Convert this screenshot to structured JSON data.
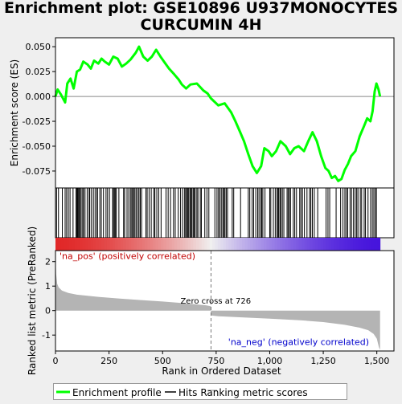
{
  "figure": {
    "title_line1": "Enrichment plot: GSE10896 U937MONOCYTES",
    "title_line2": "CURCUMIN 4H"
  },
  "chart_data": {
    "type": "line",
    "title": "Enrichment plot: GSE10896 U937MONOCYTES CURCUMIN 4H",
    "xlabel": "Rank in Ordered Dataset",
    "xlim": [
      0,
      1580
    ],
    "xticks": [
      0,
      250,
      500,
      750,
      1000,
      1250,
      1500
    ],
    "xtick_labels": [
      "0",
      "250",
      "500",
      "750",
      "1,000",
      "1,250",
      "1,500"
    ],
    "es_panel": {
      "ylabel": "Enrichment score (ES)",
      "ylim": [
        -0.092,
        0.059
      ],
      "yticks": [
        0.05,
        0.025,
        0.0,
        -0.025,
        -0.05,
        -0.075
      ],
      "ytick_labels": [
        "0.050",
        "0.025",
        "0.000",
        "-0.025",
        "-0.050",
        "-0.075"
      ],
      "series_name": "Enrichment profile",
      "color": "#00ff00",
      "points": [
        [
          0,
          0.0
        ],
        [
          10,
          0.007
        ],
        [
          25,
          0.002
        ],
        [
          45,
          -0.006
        ],
        [
          55,
          0.013
        ],
        [
          70,
          0.018
        ],
        [
          85,
          0.008
        ],
        [
          100,
          0.025
        ],
        [
          115,
          0.027
        ],
        [
          130,
          0.035
        ],
        [
          150,
          0.032
        ],
        [
          165,
          0.028
        ],
        [
          180,
          0.036
        ],
        [
          200,
          0.033
        ],
        [
          215,
          0.038
        ],
        [
          230,
          0.035
        ],
        [
          250,
          0.032
        ],
        [
          270,
          0.04
        ],
        [
          290,
          0.038
        ],
        [
          310,
          0.03
        ],
        [
          330,
          0.033
        ],
        [
          350,
          0.037
        ],
        [
          375,
          0.044
        ],
        [
          390,
          0.05
        ],
        [
          410,
          0.04
        ],
        [
          430,
          0.036
        ],
        [
          450,
          0.04
        ],
        [
          470,
          0.047
        ],
        [
          490,
          0.04
        ],
        [
          510,
          0.034
        ],
        [
          530,
          0.028
        ],
        [
          555,
          0.022
        ],
        [
          575,
          0.017
        ],
        [
          590,
          0.012
        ],
        [
          610,
          0.008
        ],
        [
          630,
          0.012
        ],
        [
          660,
          0.013
        ],
        [
          690,
          0.006
        ],
        [
          710,
          0.003
        ],
        [
          726,
          -0.002
        ],
        [
          760,
          -0.009
        ],
        [
          790,
          -0.007
        ],
        [
          820,
          -0.016
        ],
        [
          840,
          -0.025
        ],
        [
          860,
          -0.035
        ],
        [
          880,
          -0.045
        ],
        [
          900,
          -0.058
        ],
        [
          920,
          -0.07
        ],
        [
          940,
          -0.077
        ],
        [
          960,
          -0.07
        ],
        [
          975,
          -0.052
        ],
        [
          995,
          -0.055
        ],
        [
          1010,
          -0.06
        ],
        [
          1030,
          -0.055
        ],
        [
          1050,
          -0.045
        ],
        [
          1075,
          -0.05
        ],
        [
          1095,
          -0.058
        ],
        [
          1115,
          -0.052
        ],
        [
          1135,
          -0.05
        ],
        [
          1160,
          -0.055
        ],
        [
          1180,
          -0.045
        ],
        [
          1200,
          -0.036
        ],
        [
          1220,
          -0.045
        ],
        [
          1240,
          -0.06
        ],
        [
          1260,
          -0.072
        ],
        [
          1275,
          -0.075
        ],
        [
          1290,
          -0.082
        ],
        [
          1305,
          -0.08
        ],
        [
          1320,
          -0.085
        ],
        [
          1335,
          -0.083
        ],
        [
          1350,
          -0.074
        ],
        [
          1365,
          -0.068
        ],
        [
          1380,
          -0.06
        ],
        [
          1400,
          -0.055
        ],
        [
          1420,
          -0.04
        ],
        [
          1440,
          -0.03
        ],
        [
          1455,
          -0.022
        ],
        [
          1470,
          -0.025
        ],
        [
          1480,
          -0.015
        ],
        [
          1490,
          0.005
        ],
        [
          1498,
          0.013
        ],
        [
          1508,
          0.007
        ],
        [
          1515,
          0.0
        ]
      ]
    },
    "hits": {
      "series_name": "Hits",
      "positions": [
        5,
        14,
        32,
        45,
        52,
        60,
        68,
        82,
        96,
        100,
        103,
        106,
        110,
        115,
        120,
        127,
        131,
        138,
        148,
        157,
        160,
        168,
        177,
        185,
        193,
        196,
        207,
        214,
        224,
        236,
        243,
        252,
        267,
        270,
        275,
        279,
        284,
        296,
        318,
        323,
        334,
        342,
        350,
        356,
        360,
        366,
        371,
        377,
        385,
        390,
        396,
        402,
        422,
        428,
        437,
        447,
        459,
        464,
        473,
        482,
        493,
        516,
        526,
        537,
        551,
        559,
        573,
        584,
        594,
        603,
        608,
        613,
        618,
        622,
        628,
        633,
        637,
        643,
        648,
        652,
        660,
        665,
        676,
        681,
        697,
        707,
        716,
        744,
        754,
        761,
        767,
        774,
        781,
        786,
        791,
        797,
        803,
        825,
        832,
        864,
        900,
        907,
        918,
        925,
        935,
        944,
        950,
        958,
        963,
        968,
        978,
        1000,
        1005,
        1017,
        1026,
        1034,
        1039,
        1042,
        1048,
        1052,
        1059,
        1066,
        1081,
        1086,
        1092,
        1097,
        1110,
        1117,
        1125,
        1140,
        1146,
        1153,
        1162,
        1174,
        1186,
        1192,
        1199,
        1208,
        1224,
        1263,
        1272,
        1280,
        1310,
        1331,
        1342,
        1351,
        1358,
        1364,
        1375,
        1382,
        1391,
        1399,
        1406,
        1412,
        1423,
        1429,
        1441,
        1447,
        1459,
        1471,
        1479,
        1486,
        1493,
        1498
      ]
    },
    "ranking_panel": {
      "ylabel": "Ranked list metric (PreRanked)",
      "ylim": [
        -1.65,
        2.45
      ],
      "yticks": [
        2,
        1,
        0,
        -1
      ],
      "ytick_labels": [
        "2",
        "1",
        "0",
        "-1"
      ],
      "series_name": "Ranking metric scores",
      "color": "#b4b4b4",
      "points": [
        [
          0,
          2.3
        ],
        [
          3,
          1.5
        ],
        [
          8,
          1.1
        ],
        [
          15,
          0.95
        ],
        [
          30,
          0.82
        ],
        [
          60,
          0.72
        ],
        [
          100,
          0.65
        ],
        [
          200,
          0.56
        ],
        [
          300,
          0.49
        ],
        [
          400,
          0.43
        ],
        [
          500,
          0.37
        ],
        [
          600,
          0.3
        ],
        [
          700,
          0.22
        ],
        [
          725,
          0.18
        ],
        [
          726,
          -0.2
        ],
        [
          760,
          -0.23
        ],
        [
          850,
          -0.27
        ],
        [
          1000,
          -0.33
        ],
        [
          1150,
          -0.4
        ],
        [
          1250,
          -0.47
        ],
        [
          1350,
          -0.58
        ],
        [
          1420,
          -0.7
        ],
        [
          1460,
          -0.8
        ],
        [
          1485,
          -0.95
        ],
        [
          1500,
          -1.15
        ],
        [
          1510,
          -1.5
        ],
        [
          1515,
          -1.6
        ]
      ],
      "zero_cross_label": "Zero cross at 726",
      "zero_cross_rank": 726,
      "pos_label": "'na_pos' (positively correlated)",
      "neg_label": "'na_neg' (negatively correlated)"
    },
    "legend_placement": "bottom",
    "legend": {
      "enrichment": "Enrichment profile",
      "hits": "Hits",
      "ranking": "Ranking metric scores"
    },
    "grid": false
  }
}
